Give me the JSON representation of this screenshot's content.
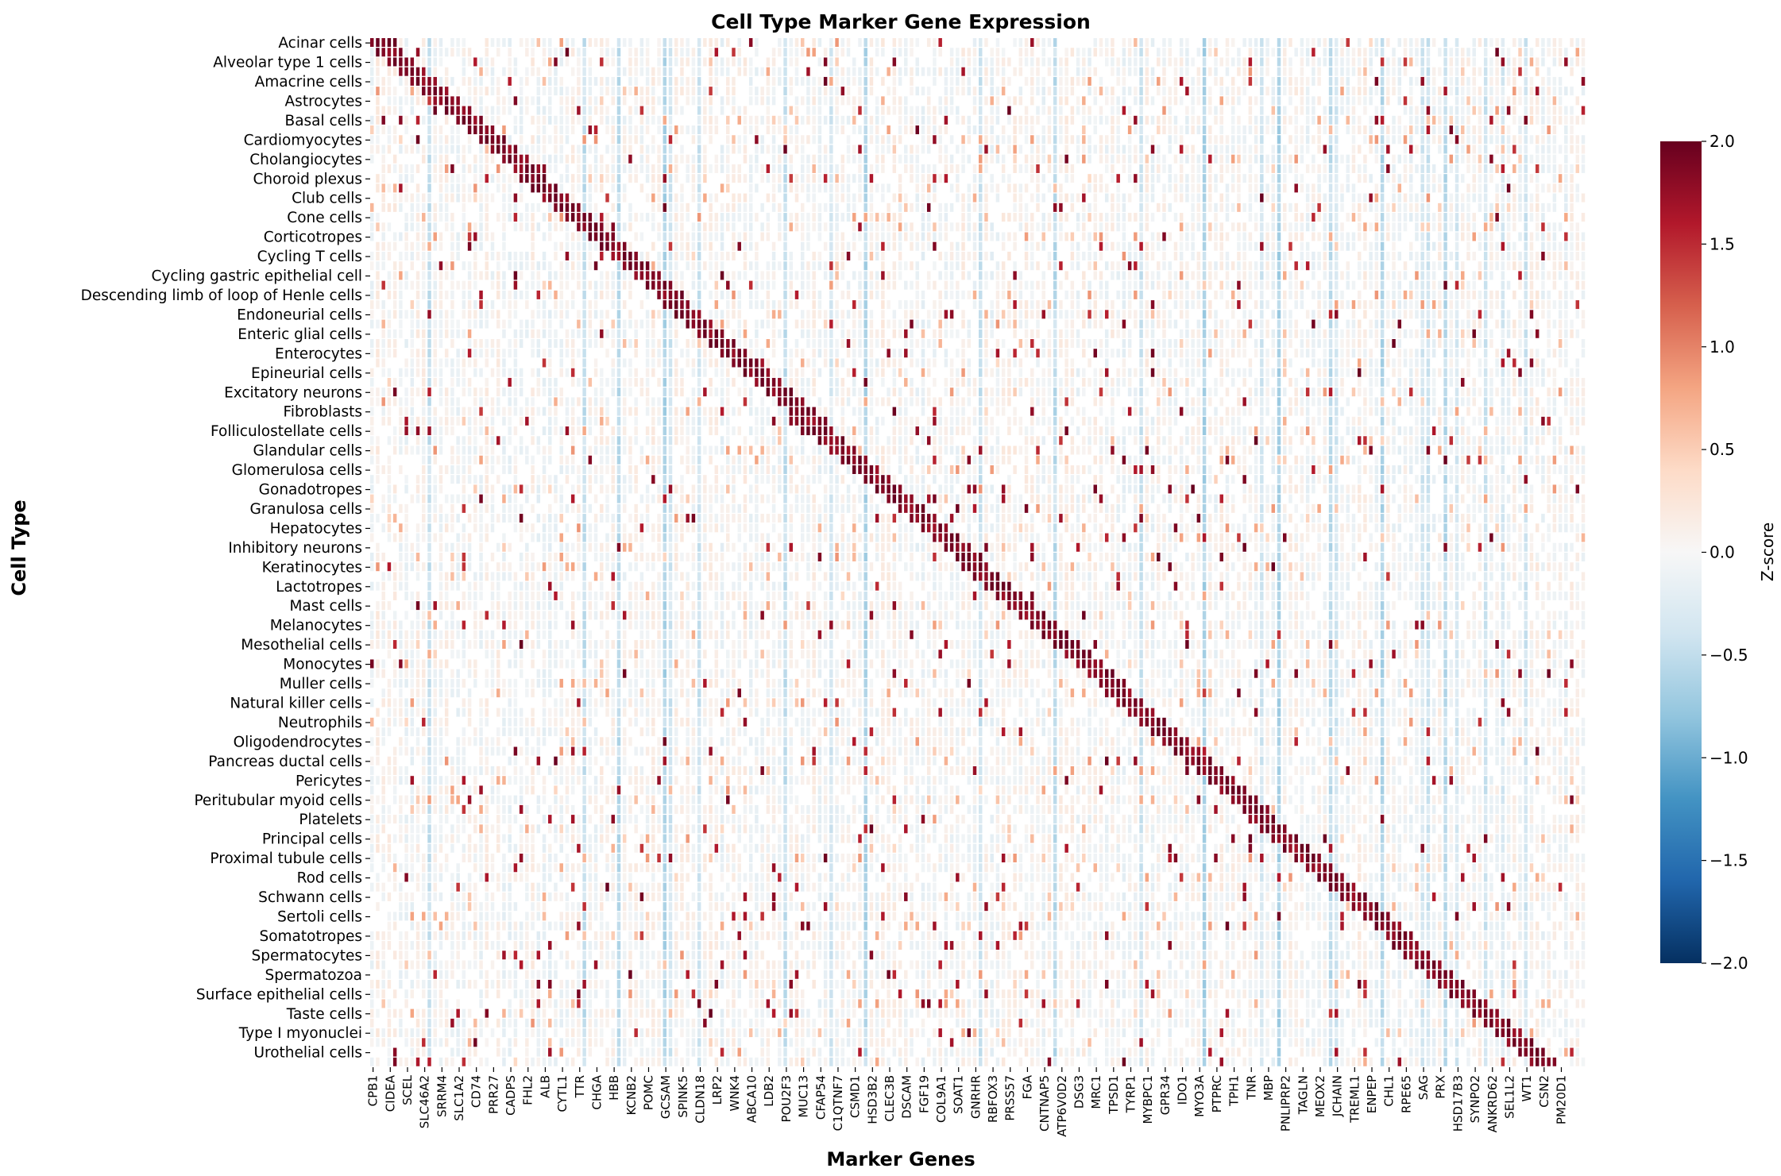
{
  "chart_data": {
    "type": "heatmap",
    "title": "Cell Type Marker Gene Expression",
    "xlabel": "Marker Genes",
    "ylabel": "Cell Type",
    "colorbar": {
      "label": "Z-score",
      "colormap": "RdBu_r",
      "vmin": -2.0,
      "vmax": 2.0,
      "ticks": [
        "2.0",
        "1.5",
        "1.0",
        "0.5",
        "0.0",
        "−0.5",
        "−1.0",
        "−1.5",
        "−2.0"
      ]
    },
    "y_tick_labels": [
      "Acinar cells",
      "Alveolar type 1 cells",
      "Amacrine cells",
      "Astrocytes",
      "Basal cells",
      "Cardiomyocytes",
      "Cholangiocytes",
      "Choroid plexus",
      "Club cells",
      "Cone cells",
      "Corticotropes",
      "Cycling T cells",
      "Cycling gastric epithelial cell",
      "Descending limb of loop of Henle cells",
      "Endoneurial cells",
      "Enteric glial cells",
      "Enterocytes",
      "Epineurial cells",
      "Excitatory neurons",
      "Fibroblasts",
      "Folliculostellate cells",
      "Glandular cells",
      "Glomerulosa cells",
      "Gonadotropes",
      "Granulosa cells",
      "Hepatocytes",
      "Inhibitory neurons",
      "Keratinocytes",
      "Lactotropes",
      "Mast cells",
      "Melanocytes",
      "Mesothelial cells",
      "Monocytes",
      "Muller cells",
      "Natural killer cells",
      "Neutrophils",
      "Oligodendrocytes",
      "Pancreas ductal cells",
      "Pericytes",
      "Peritubular myoid cells",
      "Platelets",
      "Principal cells",
      "Proximal tubule cells",
      "Rod cells",
      "Schwann cells",
      "Sertoli cells",
      "Somatotropes",
      "Spermatocytes",
      "Spermatozoa",
      "Surface epithelial cells",
      "Taste cells",
      "Type I myonuclei",
      "Urothelial cells"
    ],
    "x_tick_labels": [
      "CPB1",
      "CIDEA",
      "SCEL",
      "SLC46A2",
      "SRRM4",
      "SLC1A2",
      "CD74",
      "PRR27",
      "CADPS",
      "FHL2",
      "ALB",
      "CYTL1",
      "TTR",
      "CHGA",
      "HBB",
      "KCNB2",
      "POMC",
      "GCSAM",
      "SPINK5",
      "CLDN18",
      "LRP2",
      "WNK4",
      "ABCA10",
      "LDB2",
      "POU2F3",
      "MUC13",
      "CFAP54",
      "C1QTNF7",
      "CSMD1",
      "HSD3B2",
      "CLEC3B",
      "DSCAM",
      "FGF19",
      "COL9A1",
      "SOAT1",
      "GNRHR",
      "RBFOX3",
      "PRSS57",
      "FGA",
      "CNTNAP5",
      "ATP6V0D2",
      "DSG3",
      "MRC1",
      "TPSD1",
      "TYRP1",
      "MYBPC1",
      "GPR34",
      "IDO1",
      "MYO3A",
      "PTPRC",
      "TPH1",
      "TNR",
      "MBP",
      "PNLIPRP2",
      "TAGLN",
      "MEOX2",
      "JCHAIN",
      "TREML1",
      "ENPEP",
      "CHL1",
      "RPE65",
      "SAG",
      "PRX",
      "HSD17B3",
      "SYNPO2",
      "ANKRD62",
      "SEL1L2",
      "WT1",
      "CSN2",
      "PM20D1"
    ],
    "n_rows": 106,
    "n_cols": 212,
    "pattern": "diagonal block of high z-score (about 2.0) marker genes per cell type on a near-zero background with scattered positive values"
  }
}
